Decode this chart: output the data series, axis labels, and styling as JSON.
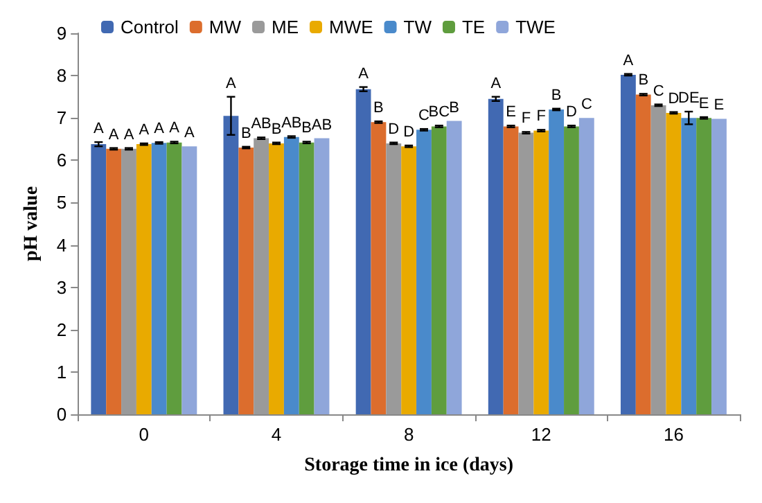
{
  "chart_data": {
    "type": "bar",
    "xlabel": "Storage time in ice (days)",
    "ylabel": "pH value",
    "categories": [
      "0",
      "4",
      "8",
      "12",
      "16"
    ],
    "ylim": [
      0,
      9
    ],
    "yticks": [
      0,
      1,
      2,
      3,
      4,
      5,
      6,
      7,
      8,
      9
    ],
    "grid": false,
    "legend": "top",
    "series": [
      {
        "name": "Control",
        "color": "#4169b2",
        "values": [
          6.38,
          7.05,
          7.68,
          7.45,
          8.02
        ],
        "errors": [
          0.05,
          0.45,
          0.05,
          0.05,
          0.02
        ],
        "value_labels": [
          "A",
          "A",
          "A",
          "A",
          "A"
        ]
      },
      {
        "name": "MW",
        "color": "#dc6d2d",
        "values": [
          6.27,
          6.3,
          6.9,
          6.8,
          7.55
        ],
        "errors": [
          0.02,
          0.02,
          0.02,
          0.02,
          0.02
        ],
        "value_labels": [
          "A",
          "B",
          "B",
          "E",
          "B"
        ]
      },
      {
        "name": "ME",
        "color": "#9a9a9a",
        "values": [
          6.27,
          6.52,
          6.4,
          6.65,
          7.3
        ],
        "errors": [
          0.02,
          0.02,
          0.02,
          0.02,
          0.02
        ],
        "value_labels": [
          "A",
          "AB",
          "D",
          "F",
          "C"
        ]
      },
      {
        "name": "MWE",
        "color": "#e9aa00",
        "values": [
          6.38,
          6.4,
          6.33,
          6.7,
          7.12
        ],
        "errors": [
          0.02,
          0.02,
          0.02,
          0.02,
          0.02
        ],
        "value_labels": [
          "A",
          "B",
          "D",
          "F",
          "D"
        ]
      },
      {
        "name": "TW",
        "color": "#4a8acb",
        "values": [
          6.41,
          6.55,
          6.72,
          7.2,
          7.0
        ],
        "errors": [
          0.02,
          0.02,
          0.02,
          0.02,
          0.15
        ],
        "value_labels": [
          "A",
          "AB",
          "C",
          "B",
          "DE"
        ]
      },
      {
        "name": "TE",
        "color": "#5f9d3e",
        "values": [
          6.42,
          6.42,
          6.8,
          6.8,
          7.0
        ],
        "errors": [
          0.02,
          0.02,
          0.02,
          0.02,
          0.02
        ],
        "value_labels": [
          "A",
          "B",
          "BC",
          "D",
          "E"
        ]
      },
      {
        "name": "TWE",
        "color": "#8fa6da",
        "values": [
          6.33,
          6.52,
          6.93,
          7.0,
          6.98
        ],
        "errors": [
          null,
          null,
          null,
          null,
          null
        ],
        "value_labels": [
          "A",
          "AB",
          "B",
          "C",
          "E"
        ]
      }
    ]
  }
}
